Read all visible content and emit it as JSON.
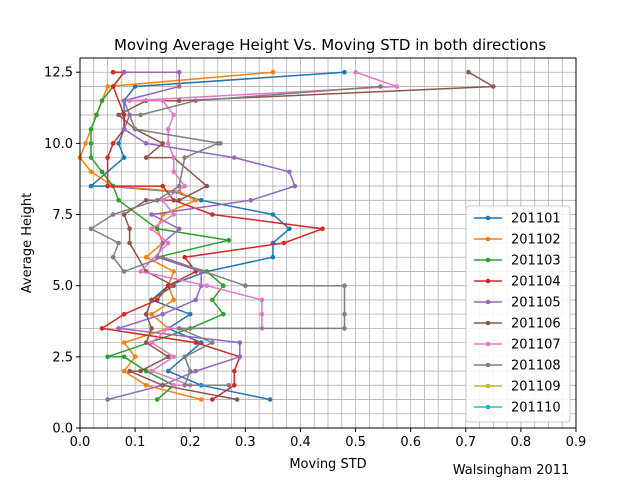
{
  "chart_data": {
    "type": "line",
    "title": "Moving Average Height Vs. Moving STD in both directions",
    "xlabel": "Moving STD",
    "ylabel": "Average Height",
    "annotation": "Walsingham 2011",
    "xlim": [
      0.0,
      0.9
    ],
    "ylim": [
      0.0,
      13.0
    ],
    "xticks": [
      "0.0",
      "0.1",
      "0.2",
      "0.3",
      "0.4",
      "0.5",
      "0.6",
      "0.7",
      "0.8",
      "0.9"
    ],
    "yticks": [
      "0.0",
      "2.5",
      "5.0",
      "7.5",
      "10.0",
      "12.5"
    ],
    "grid": true,
    "legend_position": "lower-right",
    "series": [
      {
        "name": "201101",
        "color": "#1f77b4",
        "x": [
          0.345,
          0.22,
          0.16,
          0.19,
          0.22,
          0.16,
          0.2,
          0.13,
          0.16,
          0.23,
          0.35,
          0.35,
          0.38,
          0.35,
          0.22,
          0.17,
          0.05,
          0.02,
          0.08,
          0.07,
          0.08,
          0.08,
          0.1,
          0.48
        ],
        "y": [
          1.0,
          1.5,
          2.0,
          2.5,
          3.0,
          3.5,
          4.0,
          4.5,
          5.0,
          5.5,
          6.0,
          6.5,
          7.0,
          7.5,
          8.0,
          8.3,
          8.5,
          8.5,
          9.5,
          10.0,
          10.5,
          11.5,
          12.0,
          12.5
        ]
      },
      {
        "name": "201102",
        "color": "#ff7f0e",
        "x": [
          0.22,
          0.12,
          0.08,
          0.1,
          0.08,
          0.16,
          0.13,
          0.17,
          0.16,
          0.17,
          0.12,
          0.15,
          0.14,
          0.15,
          0.21,
          0.18,
          0.06,
          0.02,
          0.0,
          0.01,
          0.03,
          0.04,
          0.05,
          0.35
        ],
        "y": [
          1.0,
          1.5,
          2.0,
          2.5,
          3.0,
          3.5,
          4.0,
          4.5,
          5.0,
          5.5,
          6.0,
          6.5,
          7.0,
          7.5,
          8.0,
          8.3,
          8.5,
          9.0,
          9.5,
          10.0,
          11.0,
          11.5,
          12.0,
          12.5
        ]
      },
      {
        "name": "201103",
        "color": "#2ca02c",
        "x": [
          0.14,
          0.17,
          0.12,
          0.08,
          0.05,
          0.2,
          0.26,
          0.24,
          0.26,
          0.23,
          0.14,
          0.27,
          0.14,
          0.07,
          0.06,
          0.04,
          0.02,
          0.02,
          0.02,
          0.03,
          0.04,
          0.06,
          0.08,
          0.06
        ],
        "y": [
          1.0,
          1.5,
          2.0,
          2.5,
          2.5,
          3.5,
          4.0,
          4.5,
          5.0,
          5.5,
          6.0,
          6.6,
          7.0,
          8.0,
          8.5,
          9.0,
          9.5,
          10.0,
          10.5,
          11.0,
          11.5,
          12.0,
          12.5,
          12.5
        ]
      },
      {
        "name": "201104",
        "color": "#d62728",
        "x": [
          0.24,
          0.28,
          0.28,
          0.29,
          0.21,
          0.04,
          0.08,
          0.14,
          0.16,
          0.21,
          0.19,
          0.37,
          0.44,
          0.24,
          0.17,
          0.15,
          0.05,
          0.05,
          0.06,
          0.08,
          0.08,
          0.06,
          0.08,
          0.06
        ],
        "y": [
          1.0,
          1.5,
          2.0,
          2.5,
          3.0,
          3.5,
          4.0,
          4.5,
          5.0,
          5.5,
          6.0,
          6.5,
          7.0,
          7.5,
          8.0,
          8.5,
          8.5,
          9.5,
          10.0,
          10.5,
          11.0,
          12.0,
          12.5,
          12.5
        ]
      },
      {
        "name": "201105",
        "color": "#9467bd",
        "x": [
          0.05,
          0.15,
          0.21,
          0.29,
          0.29,
          0.07,
          0.15,
          0.21,
          0.22,
          0.22,
          0.14,
          0.15,
          0.18,
          0.13,
          0.31,
          0.39,
          0.38,
          0.28,
          0.12,
          0.08,
          0.09,
          0.08,
          0.18,
          0.18,
          0.08
        ],
        "y": [
          1.0,
          1.5,
          2.0,
          2.5,
          3.0,
          3.5,
          4.0,
          4.5,
          5.0,
          5.5,
          6.0,
          6.5,
          7.0,
          7.5,
          8.0,
          8.5,
          9.0,
          9.5,
          10.0,
          10.5,
          11.0,
          11.5,
          12.0,
          12.5,
          12.5
        ]
      },
      {
        "name": "201106",
        "color": "#8c564b",
        "x": [
          0.285,
          0.15,
          0.09,
          0.11,
          0.16,
          0.12,
          0.13,
          0.12,
          0.13,
          0.17,
          0.12,
          0.09,
          0.09,
          0.08,
          0.12,
          0.18,
          0.23,
          0.17,
          0.12,
          0.15,
          0.1,
          0.07,
          0.12,
          0.18,
          0.75,
          0.705
        ],
        "y": [
          1.0,
          1.5,
          2.0,
          2.0,
          2.5,
          3.0,
          3.5,
          4.0,
          4.5,
          5.0,
          5.5,
          6.5,
          7.0,
          7.5,
          8.0,
          8.0,
          8.5,
          9.5,
          9.5,
          10.0,
          10.5,
          11.0,
          11.5,
          11.5,
          12.0,
          12.5
        ]
      },
      {
        "name": "201107",
        "color": "#e377c2",
        "x": [
          0.17,
          0.2,
          0.13,
          0.17,
          0.13,
          0.16,
          0.33,
          0.33,
          0.33,
          0.23,
          0.11,
          0.16,
          0.13,
          0.17,
          0.15,
          0.19,
          0.17,
          0.17,
          0.16,
          0.16,
          0.17,
          0.15,
          0.09,
          0.575,
          0.5
        ],
        "y": [
          1.5,
          1.5,
          2.0,
          2.5,
          3.0,
          3.5,
          3.5,
          4.0,
          4.5,
          5.0,
          5.5,
          6.5,
          7.0,
          7.5,
          8.0,
          8.5,
          9.0,
          9.5,
          10.0,
          10.5,
          11.0,
          11.5,
          11.5,
          12.0,
          12.5
        ]
      },
      {
        "name": "201108",
        "color": "#7f7f7f",
        "x": [
          0.27,
          0.19,
          0.2,
          0.19,
          0.24,
          0.18,
          0.48,
          0.48,
          0.48,
          0.3,
          0.15,
          0.08,
          0.06,
          0.07,
          0.02,
          0.06,
          0.14,
          0.18,
          0.19,
          0.25,
          0.255,
          0.1,
          0.09,
          0.11,
          0.21,
          0.545
        ],
        "y": [
          1.5,
          1.5,
          2.0,
          2.5,
          3.0,
          3.5,
          3.5,
          4.0,
          5.0,
          5.0,
          6.0,
          5.5,
          6.0,
          6.5,
          7.0,
          7.5,
          8.0,
          8.5,
          9.5,
          10.0,
          10.0,
          10.5,
          11.0,
          11.0,
          11.5,
          12.0
        ]
      },
      {
        "name": "201109",
        "color": "#bcbd22",
        "x": [],
        "y": []
      },
      {
        "name": "201110",
        "color": "#17becf",
        "x": [],
        "y": []
      }
    ]
  }
}
